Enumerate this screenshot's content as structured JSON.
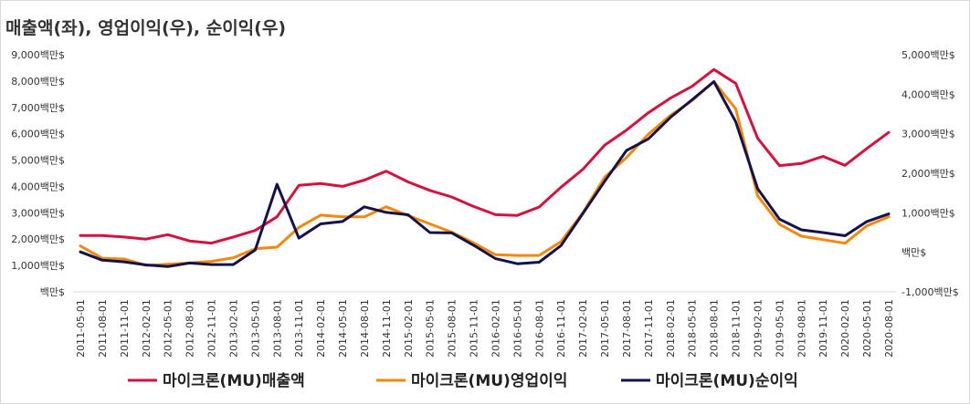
{
  "title": "매출액(좌), 영업이익(우), 순이익(우)",
  "chart_data": {
    "type": "line",
    "title": "매출액(좌), 영업이익(우), 순이익(우)",
    "x": [
      "2011-05-01",
      "2011-08-01",
      "2011-11-01",
      "2012-02-01",
      "2012-05-01",
      "2012-08-01",
      "2012-11-01",
      "2013-02-01",
      "2013-05-01",
      "2013-08-01",
      "2013-11-01",
      "2014-02-01",
      "2014-05-01",
      "2014-08-01",
      "2014-11-01",
      "2015-02-01",
      "2015-05-01",
      "2015-08-01",
      "2015-11-01",
      "2016-02-01",
      "2016-05-01",
      "2016-08-01",
      "2016-11-01",
      "2017-02-01",
      "2017-05-01",
      "2017-08-01",
      "2017-11-01",
      "2018-02-01",
      "2018-05-01",
      "2018-08-01",
      "2018-11-01",
      "2019-02-01",
      "2019-05-01",
      "2019-08-01",
      "2019-11-01",
      "2020-02-01",
      "2020-05-01",
      "2020-08-01"
    ],
    "left_axis": {
      "ylim": [
        0,
        9000
      ],
      "ticks": [
        "백만$",
        "1,000백만$",
        "2,000백만$",
        "3,000백만$",
        "4,000백만$",
        "5,000백만$",
        "6,000백만$",
        "7,000백만$",
        "8,000백만$",
        "9,000백만$"
      ]
    },
    "right_axis": {
      "ylim": [
        -1000,
        5000
      ],
      "ticks": [
        "-1,000백만$",
        "백만$",
        "1,000백만$",
        "2,000백만$",
        "3,000백만$",
        "4,000백만$",
        "5,000백만$"
      ]
    },
    "series": [
      {
        "name": "마이크론(MU)매출액",
        "axis": "left",
        "color": "#d8103c",
        "values": [
          2140,
          2140,
          2080,
          2000,
          2170,
          1930,
          1850,
          2080,
          2330,
          2850,
          4040,
          4110,
          4000,
          4240,
          4580,
          4170,
          3850,
          3600,
          3240,
          2930,
          2900,
          3220,
          3970,
          4650,
          5570,
          6140,
          6800,
          7350,
          7800,
          8440,
          7910,
          5830,
          4790,
          4870,
          5140,
          4800,
          5440,
          6050
        ]
      },
      {
        "name": "마이크론(MU)영업이익",
        "axis": "right",
        "color": "#f5870a",
        "values": [
          160,
          -150,
          -170,
          -330,
          -300,
          -270,
          -230,
          -140,
          90,
          130,
          630,
          940,
          900,
          900,
          1150,
          930,
          720,
          510,
          240,
          -60,
          -80,
          -80,
          270,
          1000,
          1900,
          2400,
          2990,
          3460,
          3840,
          4320,
          3630,
          1430,
          710,
          410,
          320,
          230,
          670,
          900
        ]
      },
      {
        "name": "마이크론(MU)순이익",
        "axis": "right",
        "color": "#13124d",
        "values": [
          10,
          -200,
          -240,
          -320,
          -360,
          -270,
          -310,
          -310,
          60,
          1720,
          360,
          720,
          780,
          1150,
          1010,
          950,
          500,
          490,
          180,
          -160,
          -290,
          -250,
          170,
          980,
          1800,
          2580,
          2870,
          3410,
          3860,
          4320,
          3300,
          1610,
          840,
          570,
          500,
          420,
          780,
          970
        ]
      }
    ],
    "legend": "bottom",
    "grid": false
  }
}
